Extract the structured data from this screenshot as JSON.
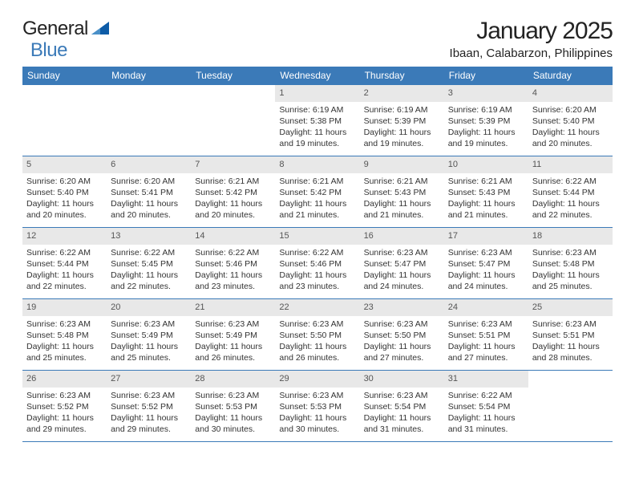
{
  "logo": {
    "text_left": "General",
    "text_right": "Blue",
    "shape_color": "#0d5ca7"
  },
  "title": "January 2025",
  "subtitle": "Ibaan, Calabarzon, Philippines",
  "colors": {
    "header_bg": "#3b7ab8",
    "daynum_bg": "#e8e8e8",
    "week_border": "#3b7ab8",
    "text": "#333333"
  },
  "weekdays": [
    "Sunday",
    "Monday",
    "Tuesday",
    "Wednesday",
    "Thursday",
    "Friday",
    "Saturday"
  ],
  "weeks": [
    [
      {
        "day": "",
        "sunrise": "",
        "sunset": "",
        "daylight1": "",
        "daylight2": "",
        "empty": true
      },
      {
        "day": "",
        "sunrise": "",
        "sunset": "",
        "daylight1": "",
        "daylight2": "",
        "empty": true
      },
      {
        "day": "",
        "sunrise": "",
        "sunset": "",
        "daylight1": "",
        "daylight2": "",
        "empty": true
      },
      {
        "day": "1",
        "sunrise": "Sunrise: 6:19 AM",
        "sunset": "Sunset: 5:38 PM",
        "daylight1": "Daylight: 11 hours",
        "daylight2": "and 19 minutes."
      },
      {
        "day": "2",
        "sunrise": "Sunrise: 6:19 AM",
        "sunset": "Sunset: 5:39 PM",
        "daylight1": "Daylight: 11 hours",
        "daylight2": "and 19 minutes."
      },
      {
        "day": "3",
        "sunrise": "Sunrise: 6:19 AM",
        "sunset": "Sunset: 5:39 PM",
        "daylight1": "Daylight: 11 hours",
        "daylight2": "and 19 minutes."
      },
      {
        "day": "4",
        "sunrise": "Sunrise: 6:20 AM",
        "sunset": "Sunset: 5:40 PM",
        "daylight1": "Daylight: 11 hours",
        "daylight2": "and 20 minutes."
      }
    ],
    [
      {
        "day": "5",
        "sunrise": "Sunrise: 6:20 AM",
        "sunset": "Sunset: 5:40 PM",
        "daylight1": "Daylight: 11 hours",
        "daylight2": "and 20 minutes."
      },
      {
        "day": "6",
        "sunrise": "Sunrise: 6:20 AM",
        "sunset": "Sunset: 5:41 PM",
        "daylight1": "Daylight: 11 hours",
        "daylight2": "and 20 minutes."
      },
      {
        "day": "7",
        "sunrise": "Sunrise: 6:21 AM",
        "sunset": "Sunset: 5:42 PM",
        "daylight1": "Daylight: 11 hours",
        "daylight2": "and 20 minutes."
      },
      {
        "day": "8",
        "sunrise": "Sunrise: 6:21 AM",
        "sunset": "Sunset: 5:42 PM",
        "daylight1": "Daylight: 11 hours",
        "daylight2": "and 21 minutes."
      },
      {
        "day": "9",
        "sunrise": "Sunrise: 6:21 AM",
        "sunset": "Sunset: 5:43 PM",
        "daylight1": "Daylight: 11 hours",
        "daylight2": "and 21 minutes."
      },
      {
        "day": "10",
        "sunrise": "Sunrise: 6:21 AM",
        "sunset": "Sunset: 5:43 PM",
        "daylight1": "Daylight: 11 hours",
        "daylight2": "and 21 minutes."
      },
      {
        "day": "11",
        "sunrise": "Sunrise: 6:22 AM",
        "sunset": "Sunset: 5:44 PM",
        "daylight1": "Daylight: 11 hours",
        "daylight2": "and 22 minutes."
      }
    ],
    [
      {
        "day": "12",
        "sunrise": "Sunrise: 6:22 AM",
        "sunset": "Sunset: 5:44 PM",
        "daylight1": "Daylight: 11 hours",
        "daylight2": "and 22 minutes."
      },
      {
        "day": "13",
        "sunrise": "Sunrise: 6:22 AM",
        "sunset": "Sunset: 5:45 PM",
        "daylight1": "Daylight: 11 hours",
        "daylight2": "and 22 minutes."
      },
      {
        "day": "14",
        "sunrise": "Sunrise: 6:22 AM",
        "sunset": "Sunset: 5:46 PM",
        "daylight1": "Daylight: 11 hours",
        "daylight2": "and 23 minutes."
      },
      {
        "day": "15",
        "sunrise": "Sunrise: 6:22 AM",
        "sunset": "Sunset: 5:46 PM",
        "daylight1": "Daylight: 11 hours",
        "daylight2": "and 23 minutes."
      },
      {
        "day": "16",
        "sunrise": "Sunrise: 6:23 AM",
        "sunset": "Sunset: 5:47 PM",
        "daylight1": "Daylight: 11 hours",
        "daylight2": "and 24 minutes."
      },
      {
        "day": "17",
        "sunrise": "Sunrise: 6:23 AM",
        "sunset": "Sunset: 5:47 PM",
        "daylight1": "Daylight: 11 hours",
        "daylight2": "and 24 minutes."
      },
      {
        "day": "18",
        "sunrise": "Sunrise: 6:23 AM",
        "sunset": "Sunset: 5:48 PM",
        "daylight1": "Daylight: 11 hours",
        "daylight2": "and 25 minutes."
      }
    ],
    [
      {
        "day": "19",
        "sunrise": "Sunrise: 6:23 AM",
        "sunset": "Sunset: 5:48 PM",
        "daylight1": "Daylight: 11 hours",
        "daylight2": "and 25 minutes."
      },
      {
        "day": "20",
        "sunrise": "Sunrise: 6:23 AM",
        "sunset": "Sunset: 5:49 PM",
        "daylight1": "Daylight: 11 hours",
        "daylight2": "and 25 minutes."
      },
      {
        "day": "21",
        "sunrise": "Sunrise: 6:23 AM",
        "sunset": "Sunset: 5:49 PM",
        "daylight1": "Daylight: 11 hours",
        "daylight2": "and 26 minutes."
      },
      {
        "day": "22",
        "sunrise": "Sunrise: 6:23 AM",
        "sunset": "Sunset: 5:50 PM",
        "daylight1": "Daylight: 11 hours",
        "daylight2": "and 26 minutes."
      },
      {
        "day": "23",
        "sunrise": "Sunrise: 6:23 AM",
        "sunset": "Sunset: 5:50 PM",
        "daylight1": "Daylight: 11 hours",
        "daylight2": "and 27 minutes."
      },
      {
        "day": "24",
        "sunrise": "Sunrise: 6:23 AM",
        "sunset": "Sunset: 5:51 PM",
        "daylight1": "Daylight: 11 hours",
        "daylight2": "and 27 minutes."
      },
      {
        "day": "25",
        "sunrise": "Sunrise: 6:23 AM",
        "sunset": "Sunset: 5:51 PM",
        "daylight1": "Daylight: 11 hours",
        "daylight2": "and 28 minutes."
      }
    ],
    [
      {
        "day": "26",
        "sunrise": "Sunrise: 6:23 AM",
        "sunset": "Sunset: 5:52 PM",
        "daylight1": "Daylight: 11 hours",
        "daylight2": "and 29 minutes."
      },
      {
        "day": "27",
        "sunrise": "Sunrise: 6:23 AM",
        "sunset": "Sunset: 5:52 PM",
        "daylight1": "Daylight: 11 hours",
        "daylight2": "and 29 minutes."
      },
      {
        "day": "28",
        "sunrise": "Sunrise: 6:23 AM",
        "sunset": "Sunset: 5:53 PM",
        "daylight1": "Daylight: 11 hours",
        "daylight2": "and 30 minutes."
      },
      {
        "day": "29",
        "sunrise": "Sunrise: 6:23 AM",
        "sunset": "Sunset: 5:53 PM",
        "daylight1": "Daylight: 11 hours",
        "daylight2": "and 30 minutes."
      },
      {
        "day": "30",
        "sunrise": "Sunrise: 6:23 AM",
        "sunset": "Sunset: 5:54 PM",
        "daylight1": "Daylight: 11 hours",
        "daylight2": "and 31 minutes."
      },
      {
        "day": "31",
        "sunrise": "Sunrise: 6:22 AM",
        "sunset": "Sunset: 5:54 PM",
        "daylight1": "Daylight: 11 hours",
        "daylight2": "and 31 minutes."
      },
      {
        "day": "",
        "sunrise": "",
        "sunset": "",
        "daylight1": "",
        "daylight2": "",
        "empty": true
      }
    ]
  ]
}
